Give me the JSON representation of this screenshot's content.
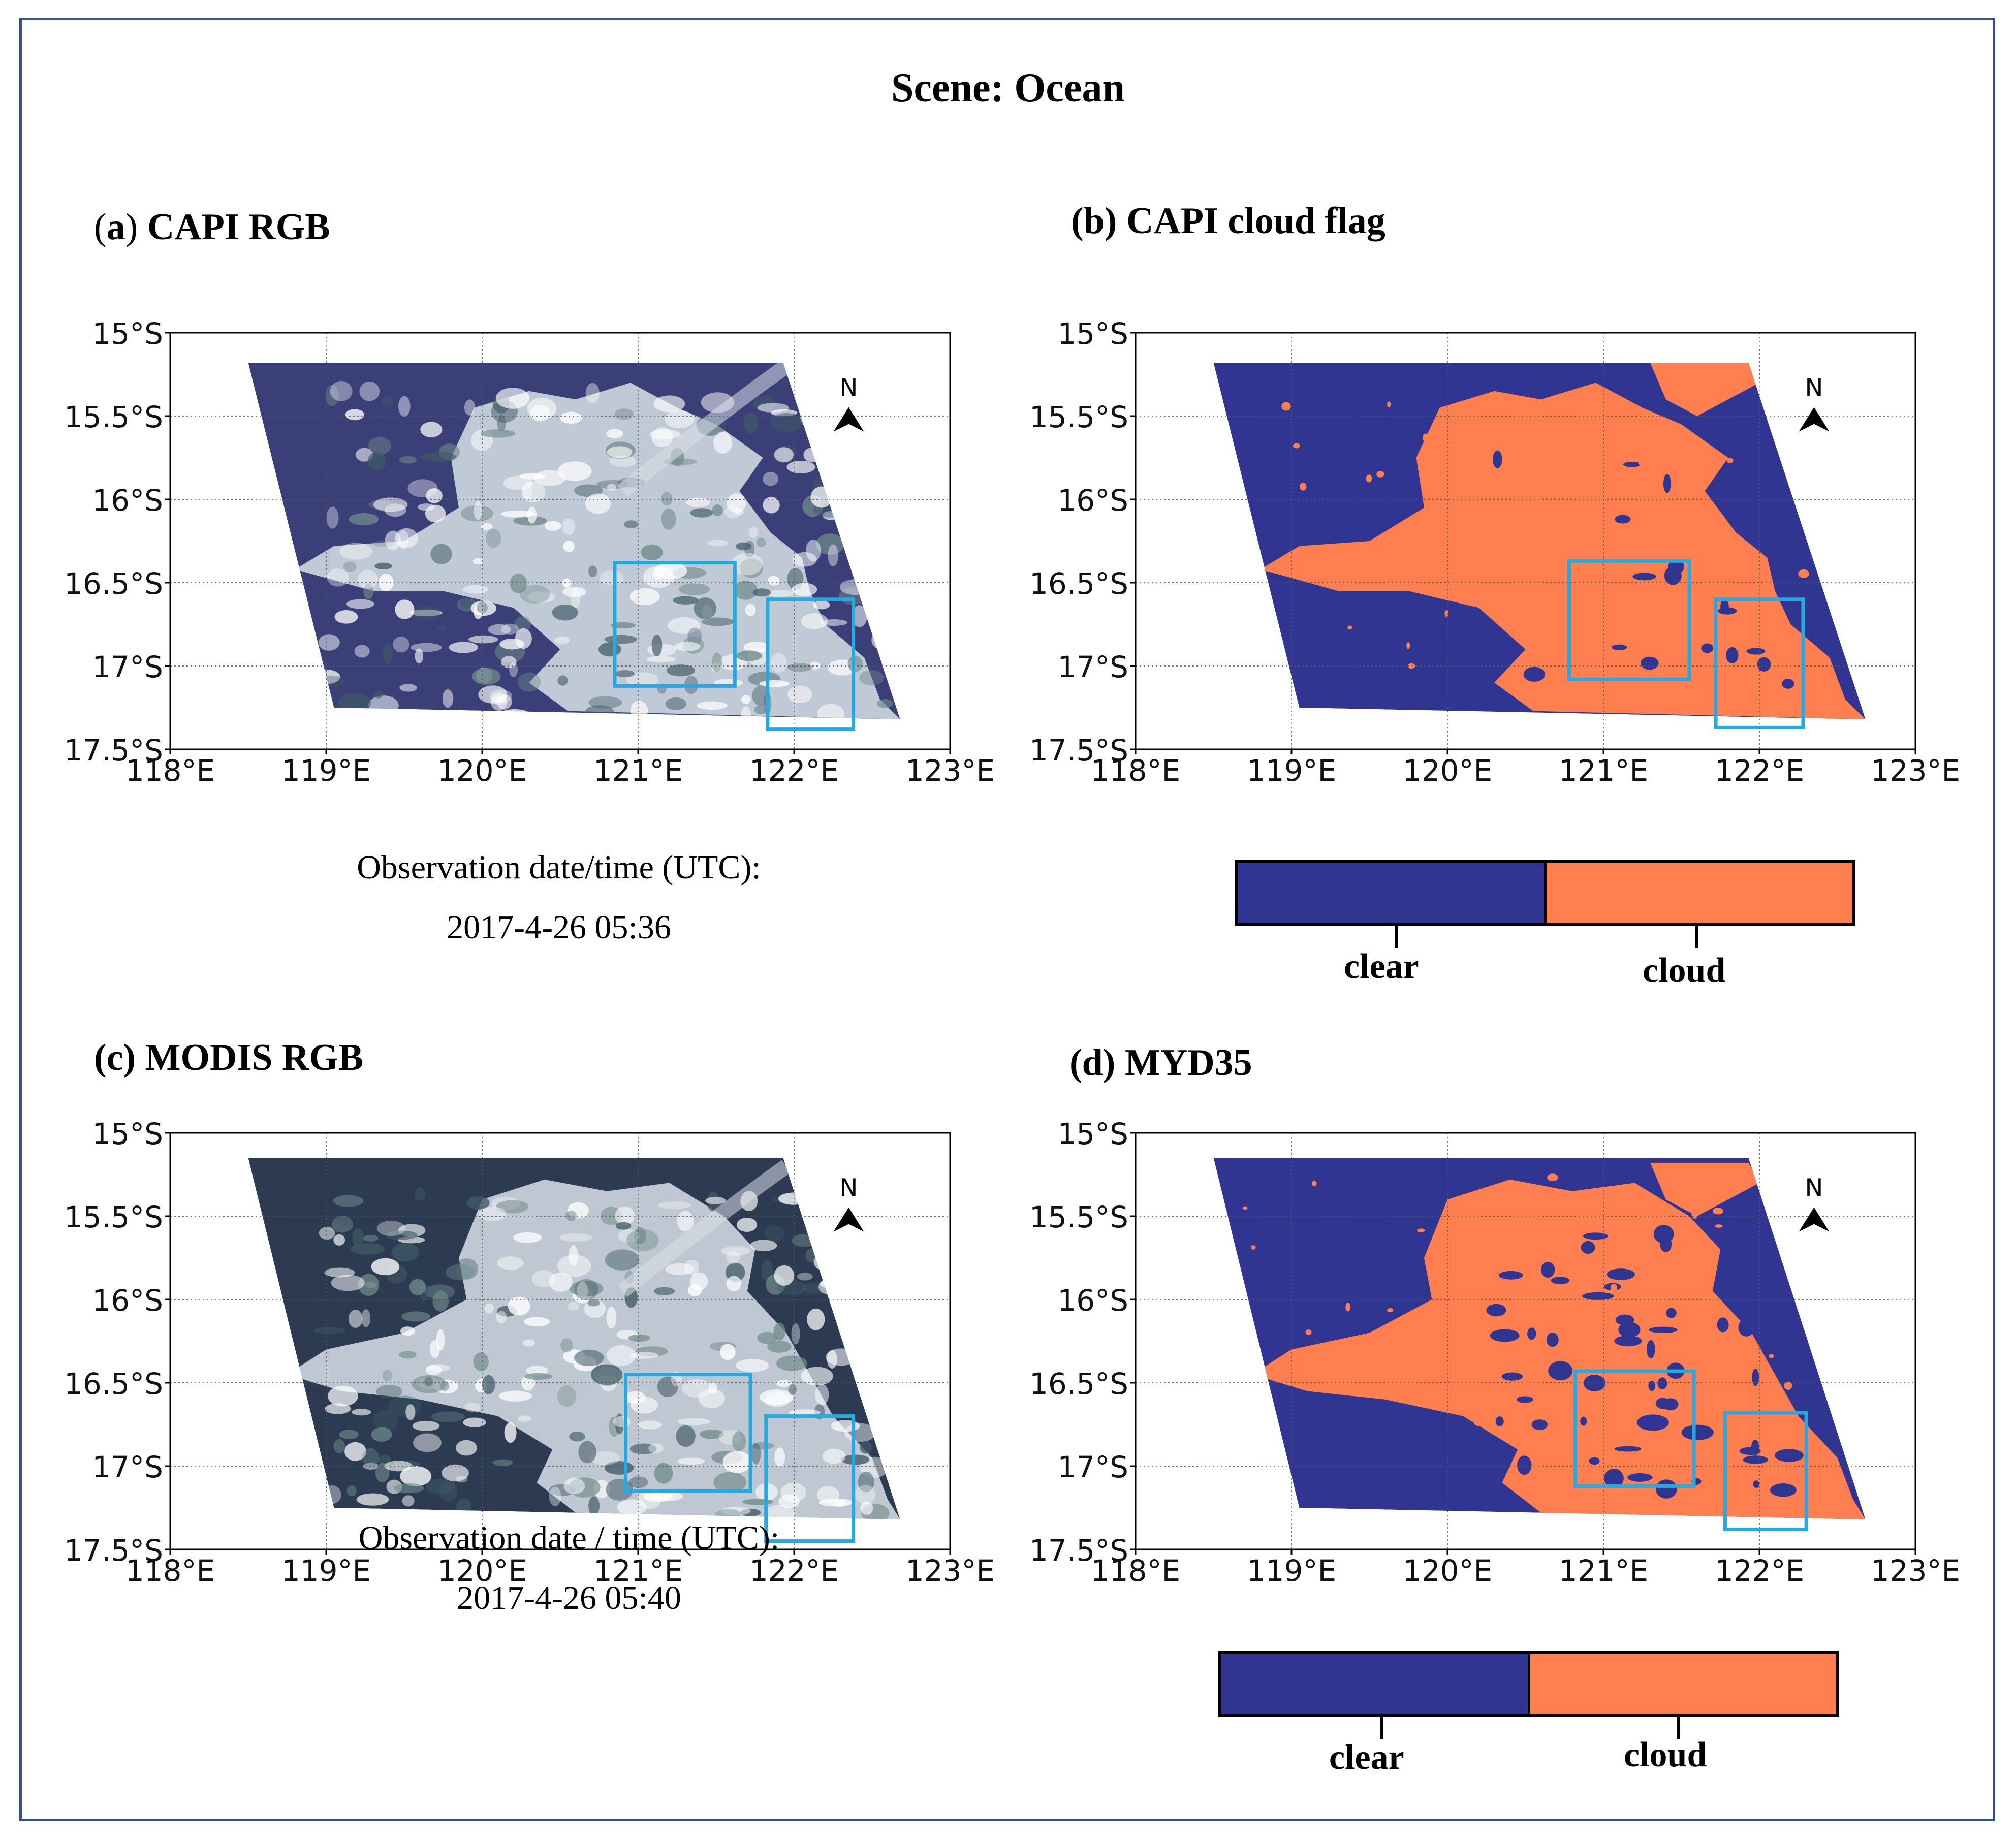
{
  "figure": {
    "title": "Scene: Ocean"
  },
  "colors": {
    "clear": "#2f3590",
    "cloud": "#ff7f50",
    "box": "#29a8e0",
    "frame": "#2f4f8f",
    "ocean_capi": "#3a3f78",
    "ocean_modis": "#2c3b52"
  },
  "axes": {
    "lat_ticks": [
      "15°S",
      "15.5°S",
      "16°S",
      "16.5°S",
      "17°S",
      "17.5°S"
    ],
    "lon_ticks": [
      "118°E",
      "119°E",
      "120°E",
      "121°E",
      "122°E",
      "123°E"
    ],
    "north_label": "N"
  },
  "panels": {
    "a": {
      "label_letter": "a",
      "label_paren_open": "(",
      "label_paren_close": ")",
      "label_text": "CAPI RGB"
    },
    "b": {
      "label": "(b) CAPI cloud flag"
    },
    "c": {
      "label": "(c) MODIS RGB"
    },
    "d": {
      "label": "(d) MYD35"
    }
  },
  "observation_a": {
    "line1": "Observation date/time (UTC):",
    "line2": "2017-4-26 05:36"
  },
  "observation_c": {
    "line1": "Observation date / time (UTC):",
    "line2": "2017-4-26 05:40"
  },
  "legend": {
    "clear": "clear",
    "cloud": "cloud"
  },
  "chart_data": [
    {
      "type": "map",
      "title": "(a) CAPI RGB",
      "xlim": [
        118,
        123
      ],
      "ylim": [
        -17.5,
        -15
      ],
      "swath_corners": [
        [
          118.5,
          -15.18
        ],
        [
          121.93,
          -15.18
        ],
        [
          122.68,
          -17.32
        ],
        [
          119.05,
          -17.25
        ]
      ],
      "highlight_boxes": [
        {
          "lon": [
            120.85,
            121.62
          ],
          "lat": [
            -16.38,
            -17.12
          ]
        },
        {
          "lon": [
            121.83,
            122.38
          ],
          "lat": [
            -16.6,
            -17.38
          ]
        }
      ]
    },
    {
      "type": "map",
      "title": "(b) CAPI cloud flag",
      "xlim": [
        118,
        123
      ],
      "ylim": [
        -17.5,
        -15
      ],
      "categories": [
        "clear",
        "cloud"
      ],
      "swath_corners": [
        [
          118.5,
          -15.18
        ],
        [
          121.93,
          -15.18
        ],
        [
          122.68,
          -17.32
        ],
        [
          119.05,
          -17.25
        ]
      ],
      "highlight_boxes": [
        {
          "lon": [
            120.78,
            121.55
          ],
          "lat": [
            -16.37,
            -17.08
          ]
        },
        {
          "lon": [
            121.72,
            122.28
          ],
          "lat": [
            -16.6,
            -17.37
          ]
        }
      ]
    },
    {
      "type": "map",
      "title": "(c) MODIS RGB",
      "xlim": [
        118,
        123
      ],
      "ylim": [
        -17.5,
        -15
      ],
      "swath_corners": [
        [
          118.5,
          -15.15
        ],
        [
          121.93,
          -15.15
        ],
        [
          122.68,
          -17.32
        ],
        [
          119.05,
          -17.25
        ]
      ],
      "highlight_boxes": [
        {
          "lon": [
            120.92,
            121.72
          ],
          "lat": [
            -16.45,
            -17.15
          ]
        },
        {
          "lon": [
            121.82,
            122.38
          ],
          "lat": [
            -16.7,
            -17.45
          ]
        }
      ]
    },
    {
      "type": "map",
      "title": "(d) MYD35",
      "xlim": [
        118,
        123
      ],
      "ylim": [
        -17.5,
        -15
      ],
      "categories": [
        "clear",
        "cloud"
      ],
      "swath_corners": [
        [
          118.5,
          -15.15
        ],
        [
          121.93,
          -15.15
        ],
        [
          122.68,
          -17.32
        ],
        [
          119.05,
          -17.25
        ]
      ],
      "highlight_boxes": [
        {
          "lon": [
            120.82,
            121.58
          ],
          "lat": [
            -16.43,
            -17.12
          ]
        },
        {
          "lon": [
            121.78,
            122.3
          ],
          "lat": [
            -16.68,
            -17.38
          ]
        }
      ]
    }
  ]
}
